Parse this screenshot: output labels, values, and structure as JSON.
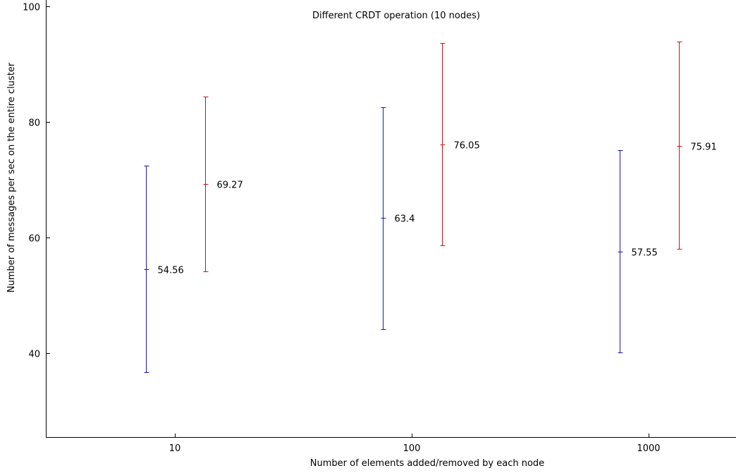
{
  "chart_data": {
    "type": "errorbar",
    "title": "Different CRDT operation (10 nodes)",
    "xlabel": "Number of elements added/removed by each node",
    "ylabel": "Number of messages per sec on the entire cluster",
    "categories": [
      "10",
      "100",
      "1000"
    ],
    "ylim": [
      25,
      100
    ],
    "yticks": [
      40,
      60,
      80,
      100
    ],
    "grid": false,
    "series": [
      {
        "color": "#1a1aaa",
        "points": [
          {
            "category": "10",
            "mean": 54.56,
            "low": 36.7,
            "high": 72.4,
            "label": "54.56"
          },
          {
            "category": "100",
            "mean": 63.4,
            "low": 44.2,
            "high": 82.6,
            "label": "63.4"
          },
          {
            "category": "1000",
            "mean": 57.55,
            "low": 40.1,
            "high": 75.1,
            "label": "57.55"
          }
        ]
      },
      {
        "color": "#cc1111",
        "points": [
          {
            "category": "10",
            "mean": 69.27,
            "low": 54.1,
            "high": 84.4,
            "label": "69.27"
          },
          {
            "category": "100",
            "mean": 76.05,
            "low": 58.6,
            "high": 93.6,
            "label": "76.05"
          },
          {
            "category": "1000",
            "mean": 75.91,
            "low": 58.0,
            "high": 93.9,
            "label": "75.91"
          }
        ]
      }
    ]
  }
}
